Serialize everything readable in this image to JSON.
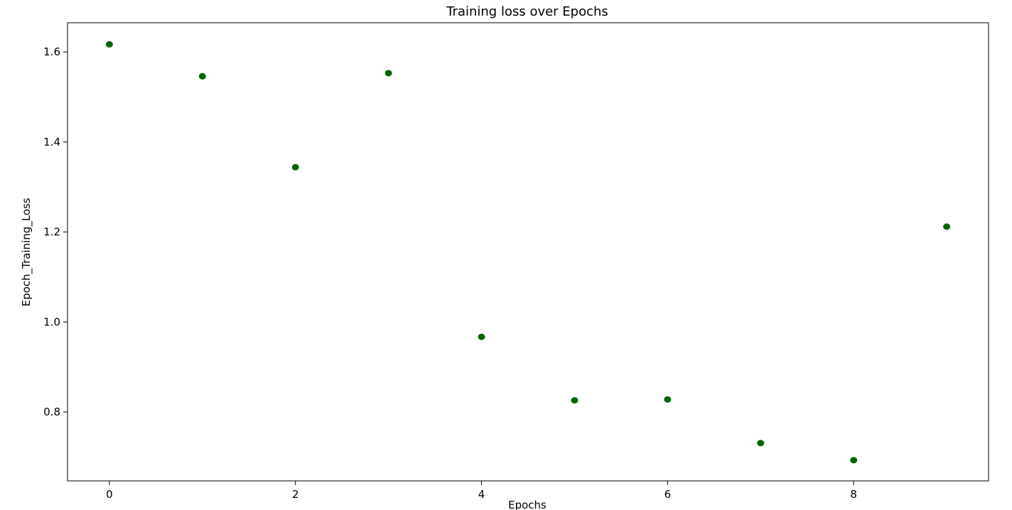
{
  "chart_data": {
    "type": "scatter",
    "title": "Training loss over Epochs",
    "xlabel": "Epochs",
    "ylabel": "Epoch_Training_Loss",
    "x": [
      0,
      1,
      2,
      3,
      4,
      5,
      6,
      7,
      8,
      9
    ],
    "y": [
      1.617,
      1.546,
      1.344,
      1.553,
      0.967,
      0.826,
      0.828,
      0.731,
      0.693,
      1.212
    ],
    "xlim": [
      -0.45,
      9.45
    ],
    "ylim": [
      0.647,
      1.665
    ],
    "xticks": [
      0,
      2,
      4,
      6,
      8
    ],
    "yticks": [
      0.8,
      1.0,
      1.2,
      1.4,
      1.6
    ],
    "xtick_labels": [
      "0",
      "2",
      "4",
      "6",
      "8"
    ],
    "ytick_labels": [
      "0.8",
      "1.0",
      "1.2",
      "1.4",
      "1.6"
    ],
    "grid": false,
    "legend": "none",
    "marker_color": "#006400"
  }
}
